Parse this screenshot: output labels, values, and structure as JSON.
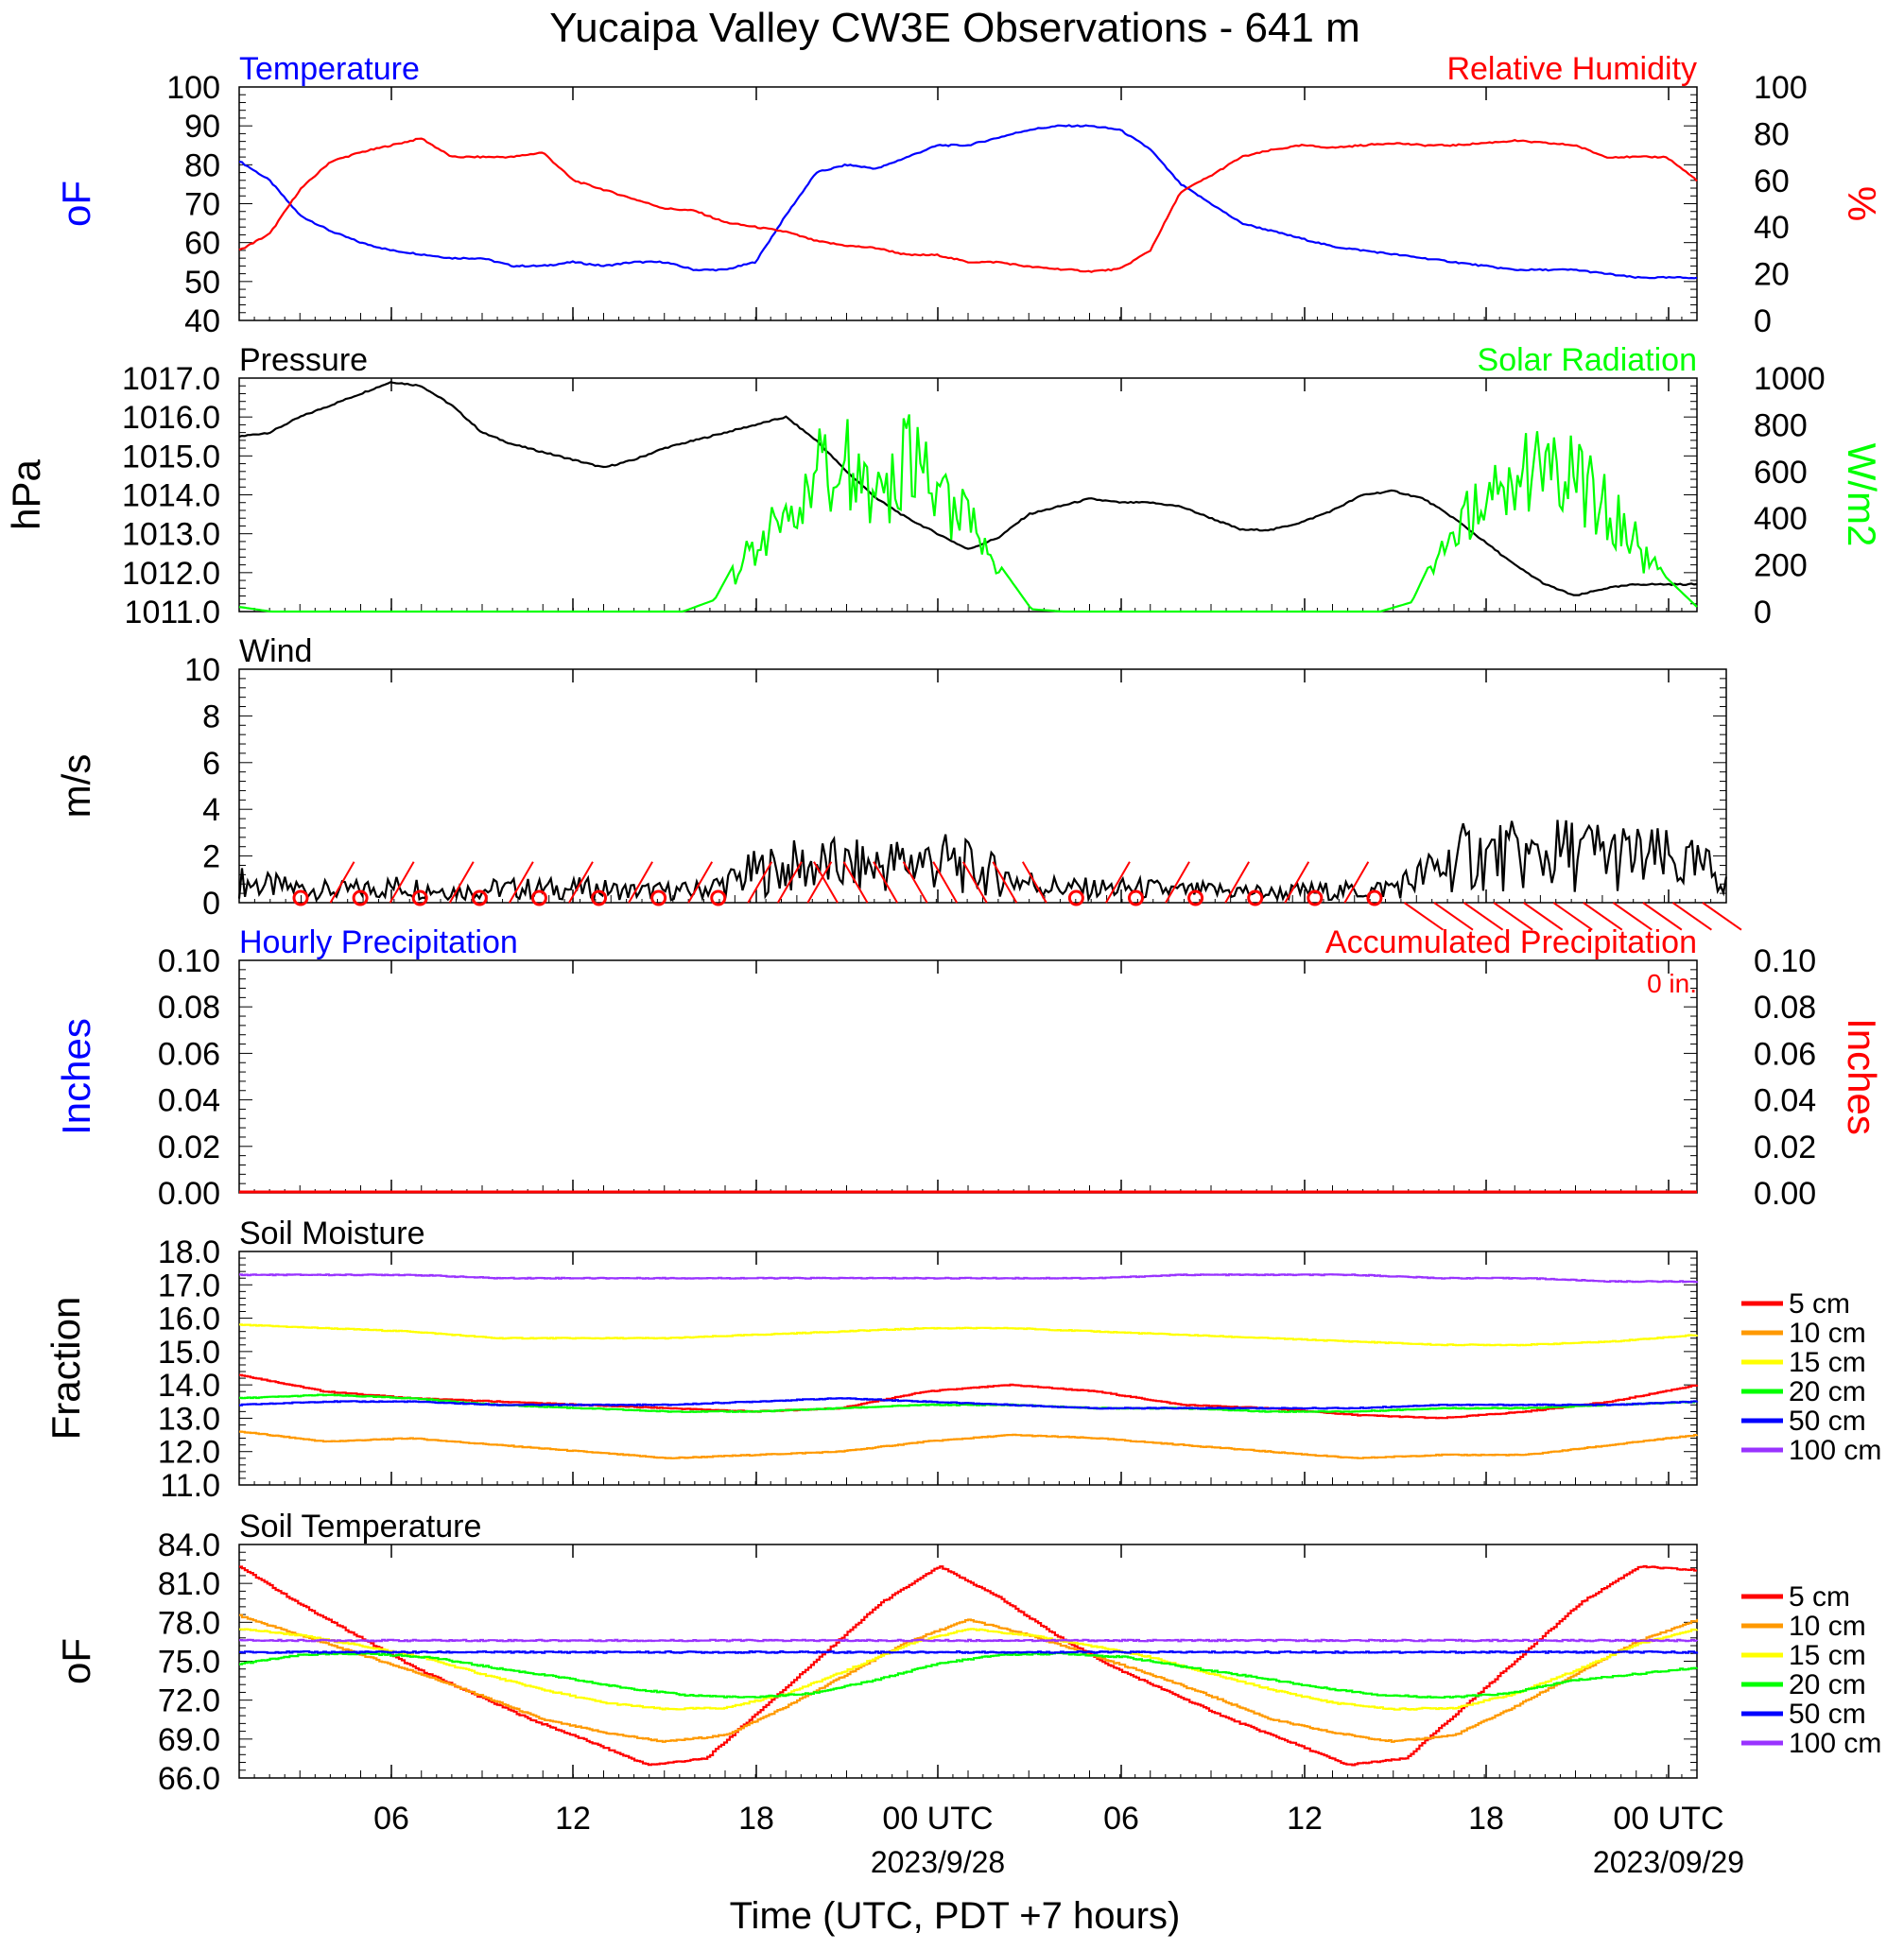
{
  "title": "Yucaipa Valley CW3E Observations - 641 m",
  "xaxis": {
    "label": "Time (UTC, PDT +7 hours)",
    "ticks": [
      "06",
      "12",
      "18",
      "00 UTC",
      "06",
      "12",
      "18",
      "00 UTC"
    ],
    "dates": [
      "2023/9/28",
      "2023/09/29"
    ]
  },
  "colors": {
    "blue": "#0000ff",
    "red": "#ff0000",
    "green": "#00ff00",
    "black": "#000000",
    "orange": "#ff9900",
    "yellow": "#ffff00",
    "purple": "#9933ff"
  },
  "chart_data": [
    {
      "type": "line",
      "title_left": "Temperature",
      "title_right": "Relative Humidity",
      "ylabel_left": "oF",
      "ylabel_right": "%",
      "ylim_left": [
        40,
        100
      ],
      "ylim_right": [
        0,
        100
      ],
      "yticks_left": [
        "100",
        "90",
        "80",
        "70",
        "60",
        "50",
        "40"
      ],
      "yticks_right": [
        "100",
        "80",
        "60",
        "40",
        "20",
        "0"
      ],
      "x": [
        0,
        1,
        2,
        3,
        4,
        5,
        6,
        7,
        8,
        9,
        10,
        11,
        12,
        13,
        14,
        15,
        16,
        17,
        18,
        19,
        20,
        21,
        22,
        23,
        24,
        25,
        26,
        27,
        28,
        29,
        30,
        31,
        32,
        33,
        34,
        35,
        36,
        37,
        38,
        39,
        40,
        41,
        42,
        43,
        44,
        45,
        46,
        47,
        48
      ],
      "series": [
        {
          "name": "Temperature",
          "axis": "left",
          "color": "blue",
          "values": [
            81,
            76,
            67,
            63,
            60,
            58,
            57,
            56,
            56,
            54,
            54,
            55,
            54,
            55,
            55,
            53,
            53,
            55,
            67,
            78,
            80,
            79,
            82,
            85,
            85,
            87,
            89,
            90,
            90,
            89,
            84,
            75,
            70,
            65,
            63,
            61,
            59,
            58,
            57,
            56,
            55,
            54,
            53,
            53,
            53,
            52,
            51,
            51,
            51
          ]
        },
        {
          "name": "Relative Humidity",
          "axis": "right",
          "color": "red",
          "values": [
            30,
            37,
            56,
            68,
            72,
            75,
            78,
            70,
            70,
            70,
            72,
            60,
            56,
            52,
            48,
            47,
            42,
            40,
            38,
            34,
            32,
            31,
            28,
            28,
            25,
            25,
            23,
            22,
            21,
            22,
            30,
            55,
            62,
            70,
            73,
            75,
            74,
            75,
            76,
            75,
            75,
            76,
            77,
            76,
            75,
            70,
            70,
            70,
            60
          ]
        }
      ]
    },
    {
      "type": "line",
      "title_left": "Pressure",
      "title_right": "Solar Radiation",
      "ylabel_left": "hPa",
      "ylabel_right": "W/m2",
      "ylim_left": [
        1011,
        1017
      ],
      "ylim_right": [
        0,
        1000
      ],
      "yticks_left": [
        "1017.0",
        "1016.0",
        "1015.0",
        "1014.0",
        "1013.0",
        "1012.0",
        "1011.0"
      ],
      "yticks_right": [
        "1000",
        "800",
        "600",
        "400",
        "200",
        "0"
      ],
      "series": [
        {
          "name": "Pressure",
          "axis": "left",
          "color": "black",
          "values": [
            1015.5,
            1015.6,
            1016.0,
            1016.3,
            1016.6,
            1016.9,
            1016.8,
            1016.3,
            1015.6,
            1015.3,
            1015.1,
            1014.9,
            1014.7,
            1014.9,
            1015.2,
            1015.4,
            1015.6,
            1015.8,
            1016.0,
            1015.4,
            1014.6,
            1013.9,
            1013.4,
            1013.0,
            1012.6,
            1012.9,
            1013.5,
            1013.7,
            1013.9,
            1013.8,
            1013.8,
            1013.7,
            1013.4,
            1013.1,
            1013.1,
            1013.3,
            1013.6,
            1014.0,
            1014.1,
            1013.9,
            1013.4,
            1012.8,
            1012.2,
            1011.7,
            1011.4,
            1011.6,
            1011.7,
            1011.7,
            1011.7
          ]
        },
        {
          "name": "Solar Radiation",
          "axis": "right",
          "color": "green",
          "values": [
            20,
            0,
            0,
            0,
            0,
            0,
            0,
            0,
            0,
            0,
            0,
            0,
            0,
            0,
            0,
            50,
            300,
            500,
            750,
            900,
            600,
            880,
            700,
            500,
            200,
            10,
            0,
            0,
            0,
            0,
            0,
            0,
            0,
            0,
            0,
            0,
            0,
            40,
            330,
            580,
            750,
            800,
            760,
            620,
            400,
            150,
            20
          ]
        }
      ]
    },
    {
      "type": "line",
      "title_left": "Wind",
      "ylabel_left": "m/s",
      "ylim_left": [
        0,
        10
      ],
      "yticks_left": [
        "10",
        "8",
        "6",
        "4",
        "2",
        "0"
      ],
      "series": [
        {
          "name": "Wind",
          "axis": "left",
          "color": "black",
          "values": [
            0.9,
            0.7,
            0.6,
            0.5,
            0.6,
            0.7,
            0.6,
            0.5,
            0.6,
            0.6,
            0.6,
            0.6,
            0.5,
            0.5,
            0.5,
            0.8,
            1.3,
            1.5,
            1.6,
            1.5,
            1.6,
            1.8,
            1.7,
            1.3,
            1.0,
            0.7,
            0.6,
            0.6,
            0.6,
            0.5,
            0.5,
            0.5,
            0.4,
            0.5,
            0.5,
            0.5,
            0.8,
            1.4,
            2.0,
            2.0,
            1.9,
            2.1,
            2.1,
            1.9,
            1.8,
            1.5,
            1.2
          ]
        }
      ]
    },
    {
      "type": "bar",
      "title_left": "Hourly Precipitation",
      "title_right": "Accumulated Precipitation",
      "annotation": "0 in.",
      "ylabel_left": "Inches",
      "ylabel_right": "Inches",
      "ylim_left": [
        0,
        0.1
      ],
      "ylim_right": [
        0,
        0.1
      ],
      "yticks_left": [
        "0.10",
        "0.08",
        "0.06",
        "0.04",
        "0.02",
        "0.00"
      ],
      "yticks_right": [
        "0.10",
        "0.08",
        "0.06",
        "0.04",
        "0.02",
        "0.00"
      ],
      "series": [
        {
          "name": "Hourly Precipitation",
          "axis": "left",
          "color": "blue",
          "values": [
            0
          ]
        },
        {
          "name": "Accumulated Precipitation",
          "axis": "right",
          "color": "red",
          "values": [
            0
          ]
        }
      ]
    },
    {
      "type": "line",
      "title_left": "Soil Moisture",
      "ylabel_left": "Fraction",
      "ylim_left": [
        11,
        18
      ],
      "yticks_left": [
        "18.0",
        "17.0",
        "16.0",
        "15.0",
        "14.0",
        "13.0",
        "12.0",
        "11.0"
      ],
      "legend": [
        "5 cm",
        "10 cm",
        "15 cm",
        "20 cm",
        "50 cm",
        "100 cm"
      ],
      "series": [
        {
          "name": "5 cm",
          "color": "red",
          "values": [
            14.3,
            13.8,
            13.6,
            13.5,
            13.4,
            13.3,
            13.2,
            13.3,
            13.8,
            14.0,
            13.8,
            13.4,
            13.3,
            13.1,
            13.0,
            13.2,
            13.5,
            14.0
          ]
        },
        {
          "name": "10 cm",
          "color": "orange",
          "values": [
            12.6,
            12.3,
            12.4,
            12.2,
            12.0,
            11.8,
            11.9,
            12.0,
            12.3,
            12.5,
            12.4,
            12.2,
            12.0,
            11.8,
            11.9,
            11.9,
            12.2,
            12.5
          ]
        },
        {
          "name": "15 cm",
          "color": "yellow",
          "values": [
            15.8,
            15.7,
            15.6,
            15.4,
            15.4,
            15.4,
            15.5,
            15.6,
            15.7,
            15.7,
            15.6,
            15.5,
            15.4,
            15.3,
            15.2,
            15.2,
            15.3,
            15.5
          ]
        },
        {
          "name": "20 cm",
          "color": "green",
          "values": [
            13.6,
            13.7,
            13.6,
            13.4,
            13.3,
            13.2,
            13.2,
            13.3,
            13.4,
            13.4,
            13.3,
            13.3,
            13.2,
            13.2,
            13.3,
            13.3,
            13.4,
            13.5
          ]
        },
        {
          "name": "50 cm",
          "color": "blue",
          "values": [
            13.4,
            13.5,
            13.5,
            13.4,
            13.4,
            13.4,
            13.5,
            13.6,
            13.5,
            13.4,
            13.3,
            13.3,
            13.3,
            13.3,
            13.4,
            13.4,
            13.4,
            13.5
          ]
        },
        {
          "name": "100 cm",
          "color": "purple",
          "values": [
            17.3,
            17.3,
            17.3,
            17.2,
            17.2,
            17.2,
            17.2,
            17.2,
            17.2,
            17.2,
            17.2,
            17.3,
            17.3,
            17.3,
            17.2,
            17.2,
            17.1,
            17.1
          ]
        }
      ]
    },
    {
      "type": "line",
      "title_left": "Soil Temperature",
      "ylabel_left": "oF",
      "ylim_left": [
        66,
        84
      ],
      "yticks_left": [
        "84.0",
        "81.0",
        "78.0",
        "75.0",
        "72.0",
        "69.0",
        "66.0"
      ],
      "legend": [
        "5 cm",
        "10 cm",
        "15 cm",
        "20 cm",
        "50 cm",
        "100 cm"
      ],
      "series": [
        {
          "name": "5 cm",
          "color": "red",
          "values": [
            82.3,
            79.5,
            77.0,
            74.5,
            72.5,
            70.5,
            68.8,
            67.0,
            67.5,
            71.5,
            75.5,
            79.5,
            82.3,
            80.0,
            77.0,
            74.5,
            72.5,
            70.5,
            68.8,
            67.0,
            67.5,
            71.5,
            75.5,
            79.5,
            82.3,
            82.0
          ]
        },
        {
          "name": "10 cm",
          "color": "orange",
          "values": [
            78.5,
            77.0,
            75.5,
            74.0,
            72.3,
            70.5,
            69.5,
            68.8,
            69.3,
            71.5,
            74.0,
            76.5,
            78.2,
            77.0,
            75.5,
            74.0,
            72.3,
            70.5,
            69.5,
            68.8,
            69.3,
            71.5,
            74.0,
            76.5,
            78.2
          ]
        },
        {
          "name": "15 cm",
          "color": "yellow",
          "values": [
            77.5,
            77.0,
            76.2,
            75.3,
            74.0,
            72.8,
            71.8,
            71.3,
            71.4,
            72.5,
            74.3,
            76.3,
            77.5,
            77.0,
            76.2,
            75.3,
            74.0,
            72.8,
            71.8,
            71.3,
            71.4,
            72.5,
            74.3,
            76.3,
            77.5
          ]
        },
        {
          "name": "20 cm",
          "color": "green",
          "values": [
            74.8,
            75.5,
            75.6,
            75.3,
            74.5,
            73.8,
            73.0,
            72.4,
            72.2,
            72.5,
            73.5,
            74.8,
            75.5,
            75.6,
            75.3,
            74.5,
            73.8,
            73.0,
            72.4,
            72.2,
            72.5,
            73.5,
            74.0,
            74.5
          ]
        },
        {
          "name": "50 cm",
          "color": "blue",
          "values": [
            75.7,
            75.7,
            75.7,
            75.7,
            75.7,
            75.7,
            75.7,
            75.7,
            75.7,
            75.7,
            75.7,
            75.7,
            75.7
          ]
        },
        {
          "name": "100 cm",
          "color": "purple",
          "values": [
            76.6,
            76.6,
            76.6,
            76.6,
            76.6,
            76.6,
            76.6,
            76.6,
            76.6,
            76.6,
            76.6,
            76.6,
            76.6
          ]
        }
      ]
    }
  ]
}
